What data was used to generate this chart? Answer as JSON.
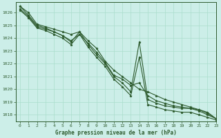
{
  "title": "Graphe pression niveau de la mer (hPa)",
  "bg_color": "#cceee8",
  "grid_color": "#aaddcc",
  "line_color": "#2d5a2d",
  "xlim": [
    -0.5,
    23
  ],
  "ylim": [
    1017.5,
    1026.8
  ],
  "yticks": [
    1018,
    1019,
    1020,
    1021,
    1022,
    1023,
    1024,
    1025,
    1026
  ],
  "xticks": [
    0,
    1,
    2,
    3,
    4,
    5,
    6,
    7,
    8,
    9,
    10,
    11,
    12,
    13,
    14,
    15,
    16,
    17,
    18,
    19,
    20,
    21,
    22,
    23
  ],
  "series": [
    [
      1026.5,
      1026.0,
      1025.1,
      1024.9,
      1024.7,
      1024.5,
      1024.3,
      1024.5,
      1023.8,
      1023.2,
      1022.2,
      1021.5,
      1021.0,
      1020.5,
      1020.0,
      1019.8,
      1019.5,
      1019.2,
      1019.0,
      1018.8,
      1018.6,
      1018.4,
      1018.2,
      1017.7
    ],
    [
      1026.5,
      1025.8,
      1025.0,
      1024.8,
      1024.5,
      1024.2,
      1023.8,
      1024.3,
      1023.6,
      1022.9,
      1022.1,
      1021.1,
      1020.8,
      1020.3,
      1020.5,
      1019.5,
      1019.1,
      1018.9,
      1018.7,
      1018.6,
      1018.5,
      1018.4,
      1018.1,
      1017.7
    ],
    [
      1026.3,
      1025.7,
      1024.9,
      1024.7,
      1024.5,
      1024.2,
      1023.7,
      1024.5,
      1023.5,
      1022.7,
      1022.0,
      1021.0,
      1020.5,
      1019.8,
      1023.7,
      1019.2,
      1018.9,
      1018.7,
      1018.6,
      1018.5,
      1018.5,
      1018.3,
      1018.0,
      1017.7
    ],
    [
      1026.2,
      1025.6,
      1024.8,
      1024.6,
      1024.3,
      1024.0,
      1023.5,
      1024.3,
      1023.3,
      1022.5,
      1021.8,
      1020.8,
      1020.2,
      1019.5,
      1022.5,
      1018.8,
      1018.6,
      1018.4,
      1018.3,
      1018.2,
      1018.2,
      1018.0,
      1017.8,
      1017.6
    ]
  ]
}
